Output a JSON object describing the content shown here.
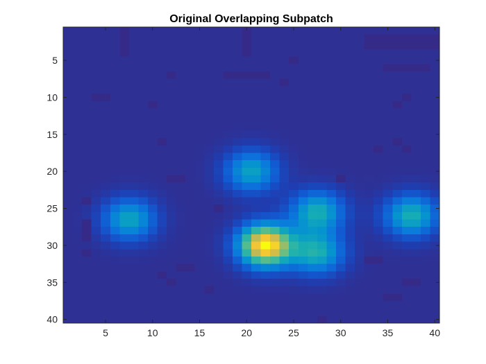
{
  "chart_data": {
    "type": "heatmap",
    "title": "Original Overlapping Subpatch",
    "xlabel": "",
    "ylabel": "",
    "x_range": [
      0.5,
      40.5
    ],
    "y_range": [
      0.5,
      40.5
    ],
    "y_direction": "reversed",
    "grid": false,
    "legend": "none",
    "colormap": "parula",
    "value_range": [
      0,
      1
    ],
    "rows": 40,
    "cols": 40,
    "x_ticks": [
      5,
      10,
      15,
      20,
      25,
      30,
      35,
      40
    ],
    "x_tick_labels": [
      "5",
      "10",
      "15",
      "20",
      "25",
      "30",
      "35",
      "40"
    ],
    "y_ticks": [
      5,
      10,
      15,
      20,
      25,
      30,
      35,
      40
    ],
    "y_tick_labels": [
      "5",
      "10",
      "15",
      "20",
      "25",
      "30",
      "35",
      "40"
    ],
    "background_level": 0.03,
    "blobs": [
      {
        "x": 20.5,
        "y": 20.0,
        "peak": 0.42,
        "spread": 2.0
      },
      {
        "x": 7.5,
        "y": 26.5,
        "peak": 0.43,
        "spread": 2.0
      },
      {
        "x": 22.0,
        "y": 30.0,
        "peak": 0.97,
        "spread": 2.0
      },
      {
        "x": 27.5,
        "y": 25.5,
        "peak": 0.47,
        "spread": 2.0
      },
      {
        "x": 27.5,
        "y": 31.0,
        "peak": 0.47,
        "spread": 2.0
      },
      {
        "x": 37.5,
        "y": 26.0,
        "peak": 0.48,
        "spread": 2.0
      }
    ],
    "dark_cells": [
      {
        "x": 7,
        "y": 1
      },
      {
        "x": 7,
        "y": 2
      },
      {
        "x": 7,
        "y": 3
      },
      {
        "x": 7,
        "y": 4
      },
      {
        "x": 20,
        "y": 1
      },
      {
        "x": 20,
        "y": 2
      },
      {
        "x": 20,
        "y": 3
      },
      {
        "x": 20,
        "y": 4
      },
      {
        "x": 33,
        "y": 3
      },
      {
        "x": 34,
        "y": 3
      },
      {
        "x": 35,
        "y": 3
      },
      {
        "x": 36,
        "y": 3
      },
      {
        "x": 37,
        "y": 3
      },
      {
        "x": 38,
        "y": 3
      },
      {
        "x": 39,
        "y": 3
      },
      {
        "x": 40,
        "y": 3
      },
      {
        "x": 33,
        "y": 2
      },
      {
        "x": 34,
        "y": 2
      },
      {
        "x": 35,
        "y": 2
      },
      {
        "x": 36,
        "y": 2
      },
      {
        "x": 37,
        "y": 2
      },
      {
        "x": 38,
        "y": 2
      },
      {
        "x": 39,
        "y": 2
      },
      {
        "x": 40,
        "y": 2
      },
      {
        "x": 25,
        "y": 5
      },
      {
        "x": 35,
        "y": 6
      },
      {
        "x": 36,
        "y": 6
      },
      {
        "x": 37,
        "y": 6
      },
      {
        "x": 38,
        "y": 6
      },
      {
        "x": 39,
        "y": 6
      },
      {
        "x": 12,
        "y": 7
      },
      {
        "x": 18,
        "y": 7
      },
      {
        "x": 19,
        "y": 7
      },
      {
        "x": 20,
        "y": 7
      },
      {
        "x": 21,
        "y": 7
      },
      {
        "x": 22,
        "y": 7
      },
      {
        "x": 24,
        "y": 8
      },
      {
        "x": 4,
        "y": 10
      },
      {
        "x": 5,
        "y": 10
      },
      {
        "x": 10,
        "y": 11
      },
      {
        "x": 36,
        "y": 11
      },
      {
        "x": 37,
        "y": 10
      },
      {
        "x": 11,
        "y": 16
      },
      {
        "x": 34,
        "y": 17
      },
      {
        "x": 36,
        "y": 16
      },
      {
        "x": 37,
        "y": 17
      },
      {
        "x": 12,
        "y": 21
      },
      {
        "x": 13,
        "y": 21
      },
      {
        "x": 30,
        "y": 21
      },
      {
        "x": 3,
        "y": 24
      },
      {
        "x": 3,
        "y": 27
      },
      {
        "x": 3,
        "y": 28
      },
      {
        "x": 3,
        "y": 29
      },
      {
        "x": 3,
        "y": 31
      },
      {
        "x": 17,
        "y": 25
      },
      {
        "x": 33,
        "y": 32
      },
      {
        "x": 34,
        "y": 32
      },
      {
        "x": 13,
        "y": 33
      },
      {
        "x": 14,
        "y": 33
      },
      {
        "x": 11,
        "y": 34
      },
      {
        "x": 12,
        "y": 35
      },
      {
        "x": 37,
        "y": 35
      },
      {
        "x": 38,
        "y": 35
      },
      {
        "x": 16,
        "y": 36
      },
      {
        "x": 35,
        "y": 37
      },
      {
        "x": 36,
        "y": 37
      },
      {
        "x": 28,
        "y": 40
      }
    ]
  }
}
